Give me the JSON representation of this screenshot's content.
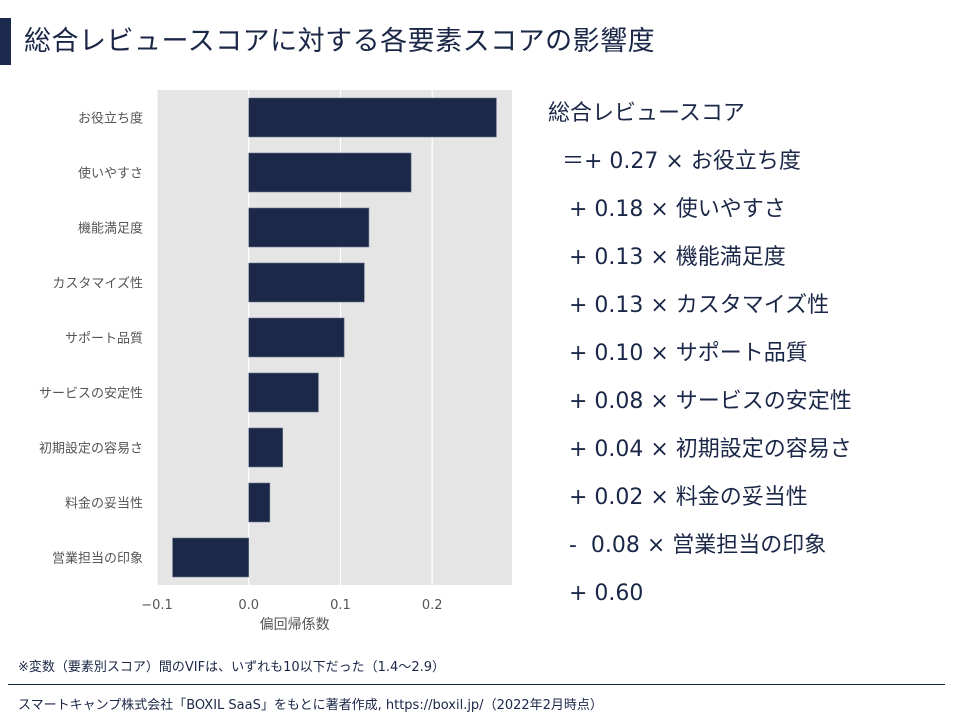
{
  "title": "総合レビュースコアに対する各要素スコアの影響度",
  "colors": {
    "accent": "#1b2a4e",
    "bar": "#1c2848",
    "plot_bg": "#e5e5e5",
    "grid": "#ffffff"
  },
  "chart_data": {
    "type": "bar",
    "orientation": "horizontal",
    "categories": [
      "お役立ち度",
      "使いやすさ",
      "機能満足度",
      "カスタマイズ性",
      "サポート品質",
      "サービスの安定性",
      "初期設定の容易さ",
      "料金の妥当性",
      "営業担当の印象"
    ],
    "values": [
      0.27,
      0.177,
      0.131,
      0.126,
      0.104,
      0.076,
      0.037,
      0.023,
      -0.083
    ],
    "xlabel": "偏回帰係数",
    "ylabel": "",
    "xlim": [
      -0.1,
      0.287
    ],
    "xticks": [
      "−0.1",
      "0.0",
      "0.1",
      "0.2"
    ],
    "xtick_values": [
      -0.1,
      0.0,
      0.1,
      0.2
    ],
    "grid": "vertical",
    "style": "gray background"
  },
  "equation": {
    "lines": [
      "総合レビュースコア",
      "  ＝+ 0.27 × お役立ち度",
      "   + 0.18 × 使いやすさ",
      "   + 0.13 × 機能満足度",
      "   + 0.13 × カスタマイズ性",
      "   + 0.10 × サポート品質",
      "   + 0.08 × サービスの安定性",
      "   + 0.04 × 初期設定の容易さ",
      "   + 0.02 × 料金の妥当性",
      "   -  0.08 × 営業担当の印象",
      "   + 0.60"
    ]
  },
  "note": "※変数（要素別スコア）間のVIFは、いずれも10以下だった（1.4〜2.9）",
  "source": "スマートキャンプ株式会社「BOXIL SaaS」をもとに著者作成, https://boxil.jp/（2022年2月時点）"
}
